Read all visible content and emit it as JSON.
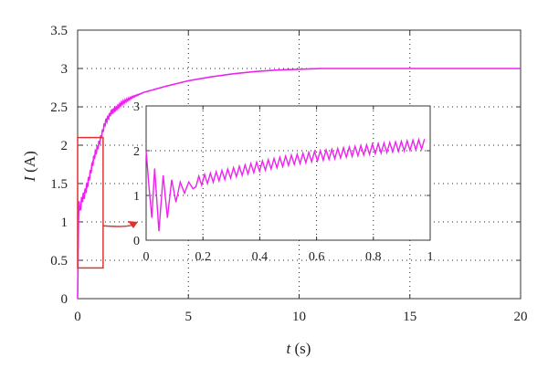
{
  "chart_data": [
    {
      "type": "line",
      "role": "main",
      "xlabel": "t (s)",
      "xlabel_var": "t",
      "xlabel_unit": " (s)",
      "ylabel": "I (A)",
      "ylabel_var": "I",
      "ylabel_unit": " (A)",
      "xlim": [
        0,
        20
      ],
      "ylim": [
        0,
        3.5
      ],
      "xticks": [
        0,
        5,
        10,
        15,
        20
      ],
      "xtick_labels": [
        "0",
        "5",
        "10",
        "15",
        "20"
      ],
      "yticks": [
        0,
        0.5,
        1,
        1.5,
        2,
        2.5,
        3,
        3.5
      ],
      "ytick_labels": [
        "0",
        "0.5",
        "1",
        "1.5",
        "2",
        "2.5",
        "3",
        "3.5"
      ],
      "grid": "dotted",
      "series": [
        {
          "color": "#ee22ee",
          "x": [
            0,
            0.05,
            0.1,
            0.2,
            0.3,
            0.5,
            0.75,
            1.0,
            1.25,
            1.5,
            2.0,
            2.5,
            3.0,
            3.5,
            4.0,
            5.0,
            6.0,
            7.0,
            8.0,
            9.0,
            10.0,
            11.0,
            12.0,
            14.0,
            16.0,
            18.0,
            20.0
          ],
          "y": [
            0,
            1.3,
            1.15,
            1.3,
            1.35,
            1.55,
            1.85,
            2.05,
            2.3,
            2.42,
            2.55,
            2.63,
            2.69,
            2.73,
            2.77,
            2.84,
            2.89,
            2.93,
            2.96,
            2.98,
            2.99,
            3.0,
            3.0,
            3.0,
            3.0,
            3.0,
            3.0
          ]
        }
      ],
      "annotations": [
        {
          "type": "zoom-box",
          "x_range": [
            0,
            1.15
          ],
          "y_range": [
            0.4,
            2.1
          ],
          "color": "#dd3333"
        },
        {
          "type": "arrow",
          "color": "#dd3333",
          "from": "zoom-box",
          "to": "inset"
        }
      ]
    },
    {
      "type": "line",
      "role": "inset",
      "xlim": [
        0,
        1
      ],
      "ylim": [
        0,
        3
      ],
      "xticks": [
        0,
        0.2,
        0.4,
        0.6,
        0.8,
        1
      ],
      "xtick_labels": [
        "0",
        "0.2",
        "0.4",
        "0.6",
        "0.8",
        "1"
      ],
      "yticks": [
        0,
        1,
        2,
        3
      ],
      "ytick_labels": [
        "0",
        "1",
        "2",
        "3"
      ],
      "grid": "dotted",
      "series": [
        {
          "color": "#ee22ee",
          "trend": {
            "x": [
              0,
              0.05,
              0.1,
              0.15,
              0.2,
              0.3,
              0.4,
              0.5,
              0.6,
              0.7,
              0.8,
              0.9,
              0.98
            ],
            "y": [
              1.0,
              1.1,
              1.2,
              1.25,
              1.35,
              1.5,
              1.65,
              1.78,
              1.88,
              1.96,
              2.04,
              2.1,
              2.15
            ]
          },
          "early_points": {
            "x": [
              0,
              0.01,
              0.02,
              0.03,
              0.045,
              0.06,
              0.075,
              0.09,
              0.105,
              0.12,
              0.135,
              0.15,
              0.165
            ],
            "y": [
              2.0,
              1.2,
              0.5,
              1.6,
              0.2,
              1.45,
              0.5,
              1.35,
              0.85,
              1.3,
              1.05,
              1.3,
              1.15
            ]
          },
          "ripple_amplitude": 0.11,
          "ripple_count": 40
        }
      ]
    }
  ]
}
